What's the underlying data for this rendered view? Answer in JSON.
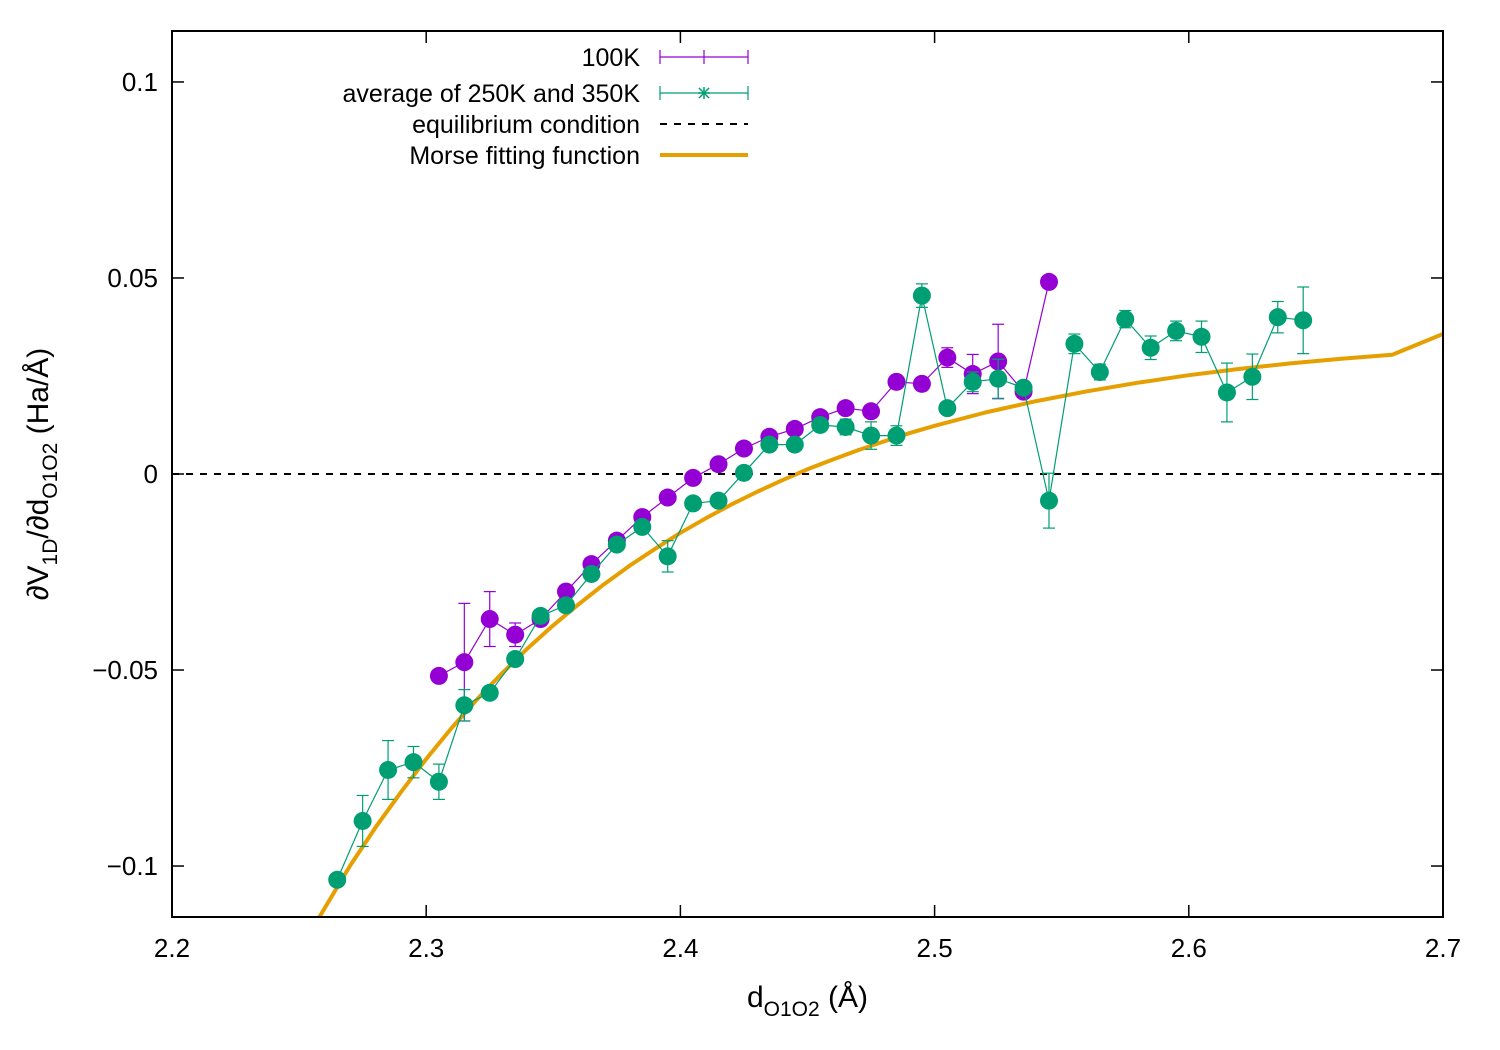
{
  "chart_data": {
    "type": "scatter",
    "xlabel": "d",
    "xlabel_sub": "O1O2",
    "xlabel_unit": " (Å)",
    "ylabel": "∂V1D/∂dO1O2 (Ha/Å)",
    "ylabel_parts": {
      "partial": "∂V",
      "sub1": "1D",
      "slash": "/∂d",
      "sub2": "O1O2",
      "unit": " (Ha/Å)"
    },
    "xlim": [
      2.2,
      2.7
    ],
    "ylim": [
      -0.113,
      0.113
    ],
    "xticks": [
      2.2,
      2.3,
      2.4,
      2.5,
      2.6,
      2.7
    ],
    "xtick_labels": [
      "2.2",
      "2.3",
      "2.4",
      "2.5",
      "2.6",
      "2.7"
    ],
    "yticks": [
      -0.1,
      -0.05,
      0,
      0.05,
      0.1
    ],
    "ytick_labels": [
      "−0.1",
      "−0.05",
      "0",
      "0.05",
      "0.1"
    ],
    "grid": false,
    "legend_position": "top-left",
    "series": [
      {
        "name": "100K",
        "color": "#9400d3",
        "marker": "circle",
        "errorbars": true,
        "points": [
          {
            "x": 2.305,
            "y": -0.0515,
            "err": 0.0
          },
          {
            "x": 2.315,
            "y": -0.048,
            "err": 0.015
          },
          {
            "x": 2.325,
            "y": -0.037,
            "err": 0.007
          },
          {
            "x": 2.335,
            "y": -0.041,
            "err": 0.003
          },
          {
            "x": 2.345,
            "y": -0.037,
            "err": 0.001
          },
          {
            "x": 2.355,
            "y": -0.03,
            "err": 0.001
          },
          {
            "x": 2.365,
            "y": -0.023,
            "err": 0.001
          },
          {
            "x": 2.375,
            "y": -0.017,
            "err": 0.001
          },
          {
            "x": 2.385,
            "y": -0.011,
            "err": 0.001
          },
          {
            "x": 2.395,
            "y": -0.006,
            "err": 0.001
          },
          {
            "x": 2.405,
            "y": -0.001,
            "err": 0.001
          },
          {
            "x": 2.415,
            "y": 0.0025,
            "err": 0.001
          },
          {
            "x": 2.425,
            "y": 0.0065,
            "err": 0.001
          },
          {
            "x": 2.435,
            "y": 0.0095,
            "err": 0.001
          },
          {
            "x": 2.445,
            "y": 0.0115,
            "err": 0.001
          },
          {
            "x": 2.455,
            "y": 0.0145,
            "err": 0.001
          },
          {
            "x": 2.465,
            "y": 0.0168,
            "err": 0.001
          },
          {
            "x": 2.475,
            "y": 0.016,
            "err": 0.001
          },
          {
            "x": 2.485,
            "y": 0.0235,
            "err": 0.0015
          },
          {
            "x": 2.495,
            "y": 0.023,
            "err": 0.0015
          },
          {
            "x": 2.505,
            "y": 0.0297,
            "err": 0.0025
          },
          {
            "x": 2.515,
            "y": 0.0255,
            "err": 0.005
          },
          {
            "x": 2.525,
            "y": 0.0287,
            "err": 0.0095
          },
          {
            "x": 2.535,
            "y": 0.021,
            "err": 0.001
          },
          {
            "x": 2.545,
            "y": 0.049,
            "err": 0.0
          }
        ]
      },
      {
        "name": "average of 250K and 350K",
        "color": "#009e73",
        "marker": "circle",
        "errorbars": true,
        "points": [
          {
            "x": 2.265,
            "y": -0.1035,
            "err": 0.0
          },
          {
            "x": 2.275,
            "y": -0.0885,
            "err": 0.0065
          },
          {
            "x": 2.285,
            "y": -0.0755,
            "err": 0.0075
          },
          {
            "x": 2.295,
            "y": -0.0735,
            "err": 0.004
          },
          {
            "x": 2.305,
            "y": -0.0785,
            "err": 0.0045
          },
          {
            "x": 2.315,
            "y": -0.059,
            "err": 0.004
          },
          {
            "x": 2.325,
            "y": -0.0558,
            "err": 0.0015
          },
          {
            "x": 2.335,
            "y": -0.0472,
            "err": 0.0012
          },
          {
            "x": 2.345,
            "y": -0.0362,
            "err": 0.001
          },
          {
            "x": 2.355,
            "y": -0.0335,
            "err": 0.001
          },
          {
            "x": 2.365,
            "y": -0.0255,
            "err": 0.001
          },
          {
            "x": 2.375,
            "y": -0.018,
            "err": 0.001
          },
          {
            "x": 2.385,
            "y": -0.0135,
            "err": 0.0015
          },
          {
            "x": 2.395,
            "y": -0.021,
            "err": 0.004
          },
          {
            "x": 2.405,
            "y": -0.0075,
            "err": 0.001
          },
          {
            "x": 2.415,
            "y": -0.0068,
            "err": 0.001
          },
          {
            "x": 2.425,
            "y": 0.0003,
            "err": 0.001
          },
          {
            "x": 2.435,
            "y": 0.0075,
            "err": 0.0015
          },
          {
            "x": 2.445,
            "y": 0.0075,
            "err": 0.001
          },
          {
            "x": 2.455,
            "y": 0.0125,
            "err": 0.001
          },
          {
            "x": 2.465,
            "y": 0.012,
            "err": 0.002
          },
          {
            "x": 2.475,
            "y": 0.0098,
            "err": 0.0035
          },
          {
            "x": 2.485,
            "y": 0.0098,
            "err": 0.0025
          },
          {
            "x": 2.495,
            "y": 0.0455,
            "err": 0.003
          },
          {
            "x": 2.505,
            "y": 0.0168,
            "err": 0.001
          },
          {
            "x": 2.515,
            "y": 0.0235,
            "err": 0.0025
          },
          {
            "x": 2.525,
            "y": 0.0243,
            "err": 0.005
          },
          {
            "x": 2.535,
            "y": 0.022,
            "err": 0.001
          },
          {
            "x": 2.545,
            "y": -0.0068,
            "err": 0.007
          },
          {
            "x": 2.555,
            "y": 0.0332,
            "err": 0.0025
          },
          {
            "x": 2.565,
            "y": 0.026,
            "err": 0.002
          },
          {
            "x": 2.575,
            "y": 0.0395,
            "err": 0.0022
          },
          {
            "x": 2.585,
            "y": 0.0322,
            "err": 0.003
          },
          {
            "x": 2.595,
            "y": 0.0365,
            "err": 0.0025
          },
          {
            "x": 2.605,
            "y": 0.035,
            "err": 0.004
          },
          {
            "x": 2.615,
            "y": 0.0208,
            "err": 0.0075
          },
          {
            "x": 2.625,
            "y": 0.0248,
            "err": 0.0058
          },
          {
            "x": 2.635,
            "y": 0.04,
            "err": 0.004
          },
          {
            "x": 2.645,
            "y": 0.0392,
            "err": 0.0085
          }
        ]
      },
      {
        "name": "equilibrium condition",
        "color": "#000000",
        "style": "dashed",
        "y_constant": 0
      },
      {
        "name": "Morse fitting function",
        "color": "#e69f00",
        "style": "solid",
        "function": "A*(1-exp(-a*(x-x0)))",
        "x": [
          2.258,
          2.27,
          2.28,
          2.29,
          2.3,
          2.31,
          2.32,
          2.33,
          2.34,
          2.35,
          2.36,
          2.37,
          2.38,
          2.39,
          2.4,
          2.41,
          2.42,
          2.43,
          2.44,
          2.45,
          2.46,
          2.47,
          2.48,
          2.49,
          2.5,
          2.52,
          2.54,
          2.56,
          2.58,
          2.6,
          2.62,
          2.64,
          2.66,
          2.68,
          2.7
        ],
        "y": [
          -0.113,
          -0.1,
          -0.0902,
          -0.0812,
          -0.0727,
          -0.0648,
          -0.0575,
          -0.0507,
          -0.0444,
          -0.0386,
          -0.0332,
          -0.0281,
          -0.0234,
          -0.0191,
          -0.015,
          -0.0113,
          -0.0078,
          -0.0046,
          -0.0016,
          0.0012,
          0.0037,
          0.0061,
          0.0083,
          0.0104,
          0.0123,
          0.0157,
          0.0186,
          0.0211,
          0.0233,
          0.0252,
          0.0268,
          0.0282,
          0.0294,
          0.0304,
          0.0357
        ]
      }
    ]
  }
}
